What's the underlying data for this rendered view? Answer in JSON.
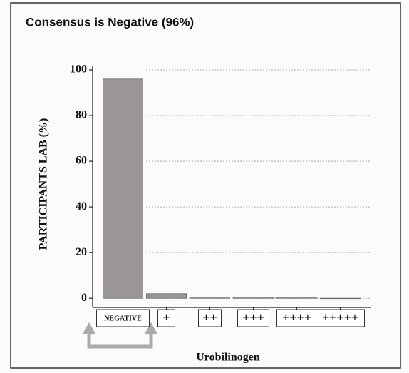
{
  "chart_data": {
    "type": "bar",
    "title": "Consensus is Negative (96%)",
    "ylabel": "PARTICIPANTS LAB (%)",
    "xlabel": "Urobilinogen",
    "categories": [
      "NEGATIVE",
      "+",
      "++",
      "+++",
      "++++",
      "+++++"
    ],
    "values": [
      96,
      2,
      0.5,
      0.5,
      0.5,
      0
    ],
    "color": "#9a9698",
    "ylim": [
      -4,
      100
    ],
    "yticks": [
      0,
      20,
      40,
      60,
      80,
      100
    ],
    "grid": true
  }
}
